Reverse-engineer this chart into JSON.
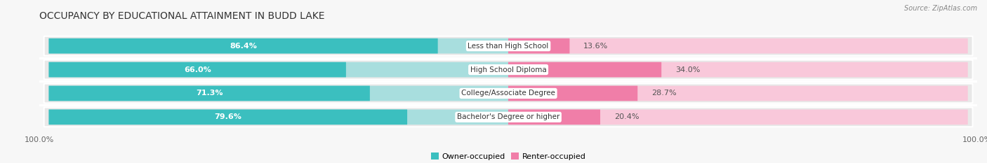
{
  "title": "OCCUPANCY BY EDUCATIONAL ATTAINMENT IN BUDD LAKE",
  "source": "Source: ZipAtlas.com",
  "categories": [
    "Less than High School",
    "High School Diploma",
    "College/Associate Degree",
    "Bachelor's Degree or higher"
  ],
  "owner_pct": [
    86.4,
    66.0,
    71.3,
    79.6
  ],
  "renter_pct": [
    13.6,
    34.0,
    28.7,
    20.4
  ],
  "owner_color": "#3BBFBF",
  "owner_color_light": "#A8DEDE",
  "renter_color": "#F07EA8",
  "renter_color_light": "#F9C8DA",
  "row_bg_color": "#E8E8E8",
  "bg_color": "#F7F7F7",
  "title_fontsize": 10,
  "label_fontsize": 8,
  "pct_fontsize": 8,
  "tick_fontsize": 8,
  "figsize": [
    14.06,
    2.33
  ],
  "dpi": 100,
  "total_width": 100,
  "left_axis_label": "100.0%",
  "right_axis_label": "100.0%"
}
